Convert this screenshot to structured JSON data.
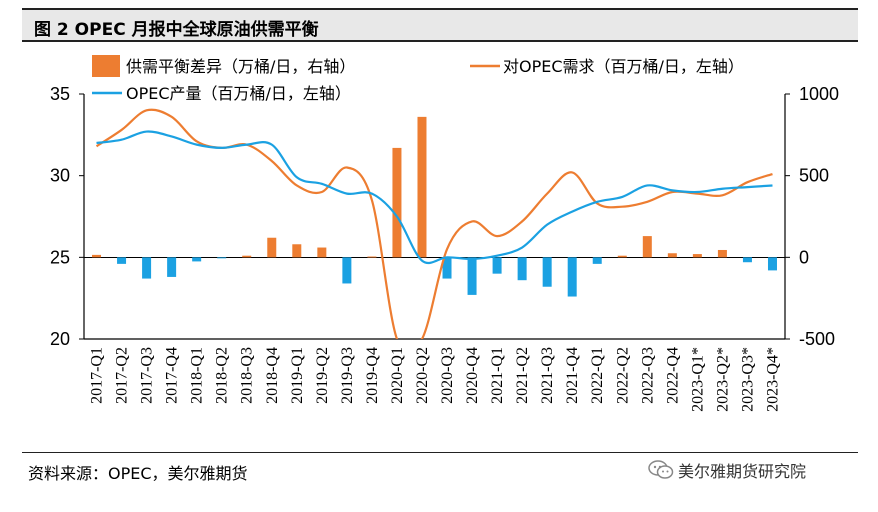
{
  "figure": {
    "title": "图 2   OPEC 月报中全球原油供需平衡",
    "source": "资料来源：OPEC，美尔雅期货",
    "watermark": "美尔雅期货研究院"
  },
  "chart_data": {
    "type": "bar+line",
    "categories": [
      "2017-Q1",
      "2017-Q2",
      "2017-Q3",
      "2017-Q4",
      "2018-Q1",
      "2018-Q2",
      "2018-Q3",
      "2018-Q4",
      "2019-Q1",
      "2019-Q2",
      "2019-Q3",
      "2019-Q4",
      "2020-Q1",
      "2020-Q2",
      "2020-Q3",
      "2020-Q4",
      "2021-Q1",
      "2021-Q2",
      "2021-Q3",
      "2021-Q4",
      "2022-Q1",
      "2022-Q2",
      "2022-Q3",
      "2022-Q4",
      "2023-Q1*",
      "2023-Q2*",
      "2023-Q3*",
      "2023-Q4*"
    ],
    "left_axis": {
      "ylim": [
        20,
        35
      ],
      "ticks": [
        20,
        25,
        30,
        35
      ]
    },
    "right_axis": {
      "ylim": [
        -500,
        1000
      ],
      "ticks": [
        -500,
        0,
        500,
        1000
      ]
    },
    "grid": false,
    "legend_position": "top",
    "series": [
      {
        "name": "供需平衡差异（万桶/日，右轴）",
        "type": "bar",
        "axis": "right",
        "color": "#ED7D31",
        "values": [
          15,
          -40,
          -130,
          -120,
          -25,
          -5,
          10,
          120,
          80,
          60,
          -160,
          5,
          670,
          860,
          -130,
          -230,
          -100,
          -140,
          -180,
          -240,
          -40,
          10,
          130,
          25,
          20,
          45,
          -30,
          -80
        ]
      },
      {
        "name": "对OPEC需求（百万桶/日，左轴）",
        "type": "line",
        "axis": "left",
        "color": "#ED7D31",
        "values": [
          31.8,
          32.8,
          34.0,
          33.6,
          32.1,
          31.7,
          31.9,
          30.9,
          29.4,
          29.0,
          30.5,
          28.5,
          20.0,
          20.0,
          25.5,
          27.2,
          26.3,
          27.2,
          28.9,
          30.2,
          28.3,
          28.1,
          28.4,
          29.0,
          28.9,
          28.8,
          29.6,
          30.1
        ]
      },
      {
        "name": "OPEC产量（百万桶/日，左轴）",
        "type": "line",
        "axis": "left",
        "color": "#1BA1E2",
        "values": [
          32.0,
          32.2,
          32.7,
          32.4,
          31.9,
          31.7,
          31.9,
          31.9,
          29.9,
          29.5,
          28.9,
          28.9,
          27.5,
          24.8,
          25.0,
          24.9,
          25.1,
          25.6,
          27.0,
          27.8,
          28.4,
          28.7,
          29.4,
          29.1,
          29.0,
          29.2,
          29.3,
          29.4
        ]
      }
    ]
  }
}
